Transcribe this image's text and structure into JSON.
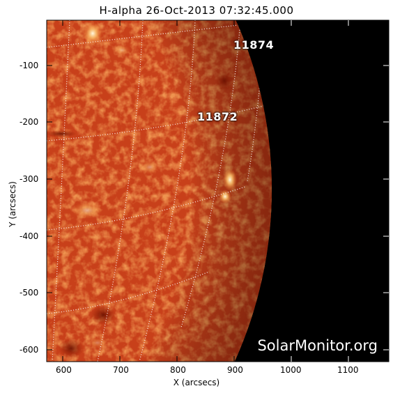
{
  "title": "H-alpha 26-Oct-2013 07:32:45.000",
  "xlabel": "X (arcsecs)",
  "ylabel": "Y (arcsecs)",
  "x_ticks": [
    "600",
    "700",
    "800",
    "900",
    "1000",
    "1100"
  ],
  "y_ticks": [
    "-100",
    "-200",
    "-300",
    "-400",
    "-500",
    "-600"
  ],
  "active_regions": [
    "11874",
    "11872"
  ],
  "watermark": "SolarMonitor.org",
  "colors": {
    "disk": "#c8401a",
    "space": "#000000",
    "grid": "#ffffff"
  }
}
